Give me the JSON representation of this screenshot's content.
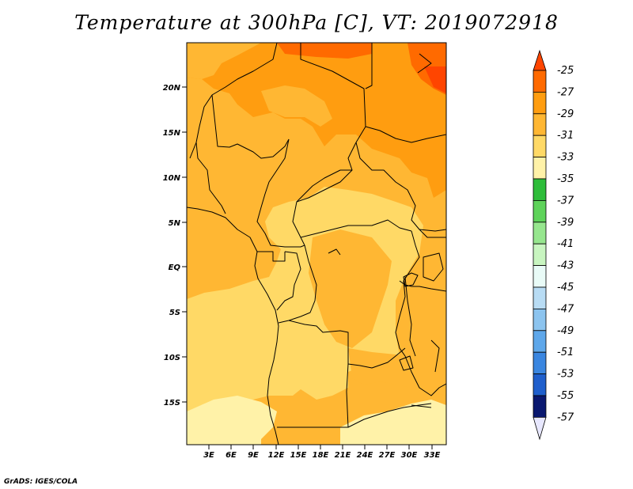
{
  "title": "Temperature at 300hPa [C], VT: 2019072918",
  "credit": "GrADS: IGES/COLA",
  "map": {
    "lat_labels": [
      "20N",
      "15N",
      "10N",
      "5N",
      "EQ",
      "5S",
      "10S",
      "15S"
    ],
    "lon_labels": [
      "3E",
      "6E",
      "9E",
      "12E",
      "15E",
      "18E",
      "21E",
      "24E",
      "27E",
      "30E",
      "33E"
    ]
  },
  "colorbar": {
    "labels": [
      "-25",
      "-27",
      "-29",
      "-31",
      "-33",
      "-35",
      "-37",
      "-39",
      "-41",
      "-43",
      "-45",
      "-47",
      "-49",
      "-51",
      "-53",
      "-55",
      "-57"
    ],
    "colors": {
      "warmest": "#ff4500",
      "c_25_27": "#ff6a00",
      "c_27_29": "#ff9d10",
      "c_29_31": "#ffb733",
      "c_31_33": "#ffd966",
      "c_33_35": "#fff2a8",
      "c_35_37": "#2ebd3a",
      "c_37_39": "#5ed35a",
      "c_39_41": "#96e68e",
      "c_41_43": "#c8f5c0",
      "c_43_45": "#e9fbf7",
      "c_45_47": "#b8dcf4",
      "c_47_49": "#8cc4ef",
      "c_49_51": "#5ea7ea",
      "c_51_53": "#3a86e0",
      "c_53_55": "#1f5fcc",
      "c_55_57": "#1040a8",
      "coldest": "#0a1870",
      "below": "#e8e8ff"
    }
  }
}
